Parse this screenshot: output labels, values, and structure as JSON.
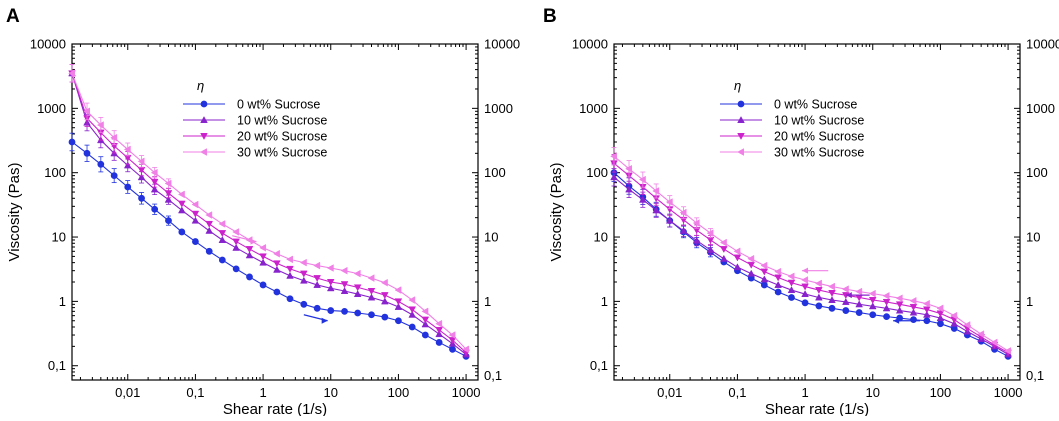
{
  "chart_data": [
    {
      "type": "line",
      "panel_label": "A",
      "xlabel": "Shear rate (1/s)",
      "ylabel": "Viscosity (Pas)",
      "xscale": "log",
      "yscale": "log",
      "xlim": [
        0.0015,
        1500
      ],
      "ylim": [
        0.06,
        10000
      ],
      "xticks": [
        {
          "v": 0.01,
          "label": "0,01"
        },
        {
          "v": 0.1,
          "label": "0,1"
        },
        {
          "v": 1,
          "label": "1"
        },
        {
          "v": 10,
          "label": "10"
        },
        {
          "v": 100,
          "label": "100"
        },
        {
          "v": 1000,
          "label": "1000"
        }
      ],
      "yticks": [
        {
          "v": 0.1,
          "label": "0,1"
        },
        {
          "v": 1,
          "label": "1"
        },
        {
          "v": 10,
          "label": "10"
        },
        {
          "v": 100,
          "label": "100"
        },
        {
          "v": 1000,
          "label": "1000"
        },
        {
          "v": 10000,
          "label": "10000"
        }
      ],
      "legend_title": "η",
      "legend_position": "top-center",
      "x": [
        0.0015,
        0.0025,
        0.004,
        0.0063,
        0.01,
        0.016,
        0.025,
        0.04,
        0.063,
        0.1,
        0.16,
        0.25,
        0.4,
        0.63,
        1,
        1.6,
        2.5,
        4,
        6.3,
        10,
        16,
        25,
        40,
        63,
        100,
        160,
        250,
        400,
        630,
        1000
      ],
      "series": [
        {
          "name": "0 wt% Sucrose",
          "color": "#2233dd",
          "marker": "circle",
          "values": [
            300,
            200,
            135,
            90,
            60,
            40,
            27,
            18,
            12,
            8.5,
            6,
            4.4,
            3.2,
            2.4,
            1.8,
            1.4,
            1.1,
            0.9,
            0.78,
            0.72,
            0.7,
            0.66,
            0.62,
            0.57,
            0.5,
            0.4,
            0.3,
            0.23,
            0.18,
            0.14
          ]
        },
        {
          "name": "10 wt% Sucrose",
          "color": "#8822cc",
          "marker": "triangle-up",
          "values": [
            3500,
            600,
            320,
            200,
            130,
            85,
            55,
            38,
            26,
            18,
            12.5,
            9,
            6.8,
            5.2,
            4,
            3.1,
            2.5,
            2.1,
            1.8,
            1.6,
            1.45,
            1.3,
            1.15,
            1.0,
            0.82,
            0.62,
            0.44,
            0.31,
            0.22,
            0.15
          ]
        },
        {
          "name": "20 wt% Sucrose",
          "color": "#cc22cc",
          "marker": "triangle-down",
          "values": [
            3500,
            700,
            420,
            260,
            170,
            110,
            72,
            48,
            33,
            23,
            16,
            11.5,
            8.5,
            6.5,
            5,
            3.9,
            3.2,
            2.7,
            2.3,
            2.0,
            1.85,
            1.65,
            1.45,
            1.25,
            1.0,
            0.75,
            0.52,
            0.36,
            0.25,
            0.16
          ]
        },
        {
          "name": "30 wt% Sucrose",
          "color": "#f080e6",
          "marker": "triangle-left",
          "values": [
            3500,
            900,
            550,
            350,
            230,
            150,
            100,
            68,
            46,
            32,
            22,
            16,
            12,
            9,
            6.8,
            5.5,
            4.5,
            4.0,
            3.6,
            3.3,
            3.0,
            2.7,
            2.3,
            1.95,
            1.5,
            1.05,
            0.7,
            0.45,
            0.3,
            0.18
          ]
        }
      ]
    },
    {
      "type": "line",
      "panel_label": "B",
      "xlabel": "Shear rate (1/s)",
      "ylabel": "Viscosity (Pas)",
      "xscale": "log",
      "yscale": "log",
      "xlim": [
        0.0015,
        1500
      ],
      "ylim": [
        0.06,
        10000
      ],
      "xticks": [
        {
          "v": 0.01,
          "label": "0,01"
        },
        {
          "v": 0.1,
          "label": "0,1"
        },
        {
          "v": 1,
          "label": "1"
        },
        {
          "v": 10,
          "label": "10"
        },
        {
          "v": 100,
          "label": "100"
        },
        {
          "v": 1000,
          "label": "1000"
        }
      ],
      "yticks": [
        {
          "v": 0.1,
          "label": "0,1"
        },
        {
          "v": 1,
          "label": "1"
        },
        {
          "v": 10,
          "label": "10"
        },
        {
          "v": 100,
          "label": "100"
        },
        {
          "v": 1000,
          "label": "1000"
        },
        {
          "v": 10000,
          "label": "10000"
        }
      ],
      "legend_title": "η",
      "legend_position": "top-center",
      "x": [
        0.0015,
        0.0025,
        0.004,
        0.0063,
        0.01,
        0.016,
        0.025,
        0.04,
        0.063,
        0.1,
        0.16,
        0.25,
        0.4,
        0.63,
        1,
        1.6,
        2.5,
        4,
        6.3,
        10,
        16,
        25,
        40,
        63,
        100,
        160,
        250,
        400,
        630,
        1000
      ],
      "series": [
        {
          "name": "0 wt% Sucrose",
          "color": "#2233dd",
          "marker": "circle",
          "values": [
            100,
            62,
            42,
            27,
            18,
            12,
            8.2,
            5.8,
            4.1,
            3.0,
            2.3,
            1.8,
            1.4,
            1.15,
            0.95,
            0.85,
            0.78,
            0.72,
            0.67,
            0.62,
            0.58,
            0.55,
            0.52,
            0.5,
            0.45,
            0.38,
            0.3,
            0.24,
            0.18,
            0.14
          ]
        },
        {
          "name": "10 wt% Sucrose",
          "color": "#8822cc",
          "marker": "triangle-up",
          "values": [
            85,
            55,
            38,
            26,
            18,
            12.5,
            8.8,
            6.3,
            4.6,
            3.4,
            2.7,
            2.2,
            1.8,
            1.5,
            1.3,
            1.15,
            1.05,
            0.98,
            0.9,
            0.84,
            0.78,
            0.72,
            0.67,
            0.62,
            0.55,
            0.45,
            0.34,
            0.26,
            0.2,
            0.15
          ]
        },
        {
          "name": "20 wt% Sucrose",
          "color": "#cc22cc",
          "marker": "triangle-down",
          "values": [
            140,
            90,
            60,
            40,
            27,
            18.5,
            12.8,
            9,
            6.5,
            4.8,
            3.7,
            2.9,
            2.35,
            1.95,
            1.7,
            1.5,
            1.35,
            1.25,
            1.15,
            1.05,
            0.98,
            0.9,
            0.82,
            0.75,
            0.65,
            0.52,
            0.38,
            0.28,
            0.21,
            0.16
          ]
        },
        {
          "name": "30 wt% Sucrose",
          "color": "#f080e6",
          "marker": "triangle-left",
          "values": [
            180,
            115,
            78,
            52,
            35,
            24,
            16.5,
            11.5,
            8.2,
            6,
            4.6,
            3.6,
            2.9,
            2.45,
            2.15,
            1.9,
            1.7,
            1.55,
            1.42,
            1.32,
            1.22,
            1.12,
            1.02,
            0.92,
            0.78,
            0.6,
            0.43,
            0.31,
            0.23,
            0.17
          ]
        }
      ]
    }
  ]
}
